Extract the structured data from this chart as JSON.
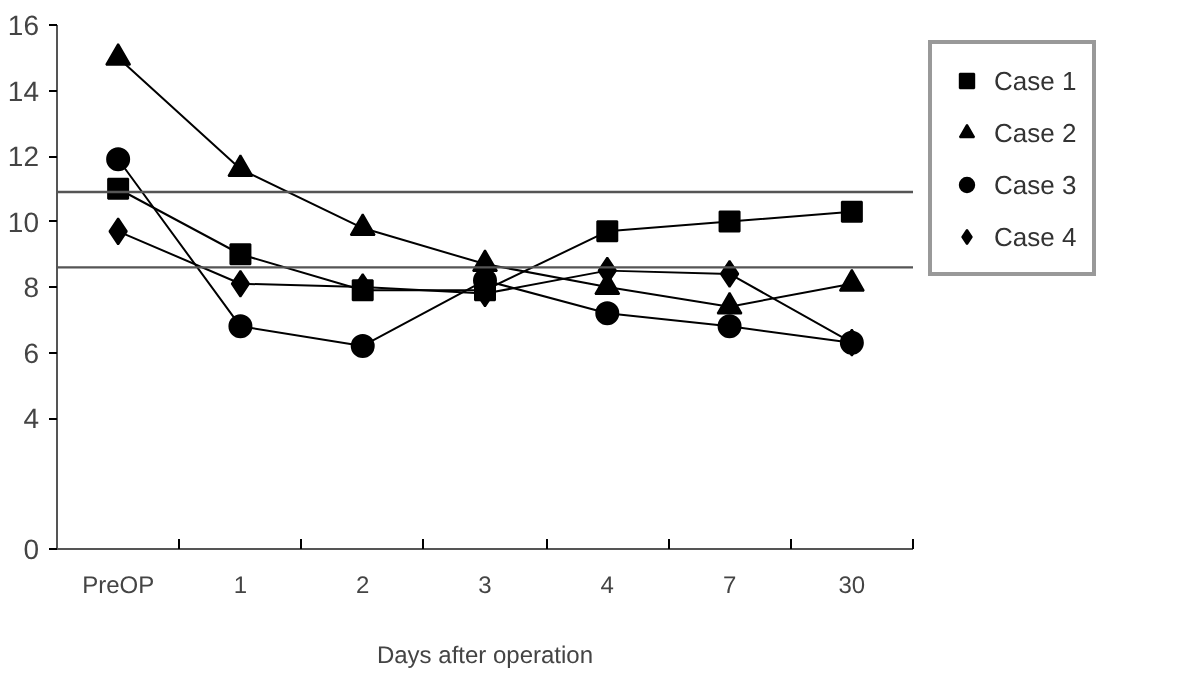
{
  "chart_data": {
    "type": "line",
    "xlabel": "Days after operation",
    "categories": [
      "PreOP",
      "1",
      "2",
      "3",
      "4",
      "7",
      "30"
    ],
    "ylim": [
      0,
      16
    ],
    "yticks": [
      0,
      4,
      6,
      8,
      10,
      12,
      14,
      16
    ],
    "series": [
      {
        "name": "Case 1",
        "color": "#000000",
        "marker": "square",
        "values": [
          11.0,
          9.0,
          7.9,
          7.9,
          9.7,
          10.0,
          10.3
        ]
      },
      {
        "name": "Case 2",
        "color": "#000000",
        "marker": "triangle",
        "values": [
          15.0,
          11.6,
          9.8,
          8.7,
          8.0,
          7.4,
          8.1
        ]
      },
      {
        "name": "Case 3",
        "color": "#000000",
        "marker": "circle",
        "values": [
          11.9,
          6.8,
          6.2,
          8.2,
          7.2,
          6.8,
          6.3
        ]
      },
      {
        "name": "Case 4",
        "color": "#000000",
        "marker": "diamond",
        "values": [
          9.7,
          8.1,
          8.0,
          7.8,
          8.5,
          8.4,
          6.3
        ]
      }
    ],
    "ref_lines": [
      {
        "axis": "y",
        "value": 10.9,
        "color": "#555555"
      },
      {
        "axis": "y",
        "value": 8.6,
        "color": "#555555"
      }
    ],
    "grid": false,
    "legend": "top right",
    "line_style": "solid"
  }
}
